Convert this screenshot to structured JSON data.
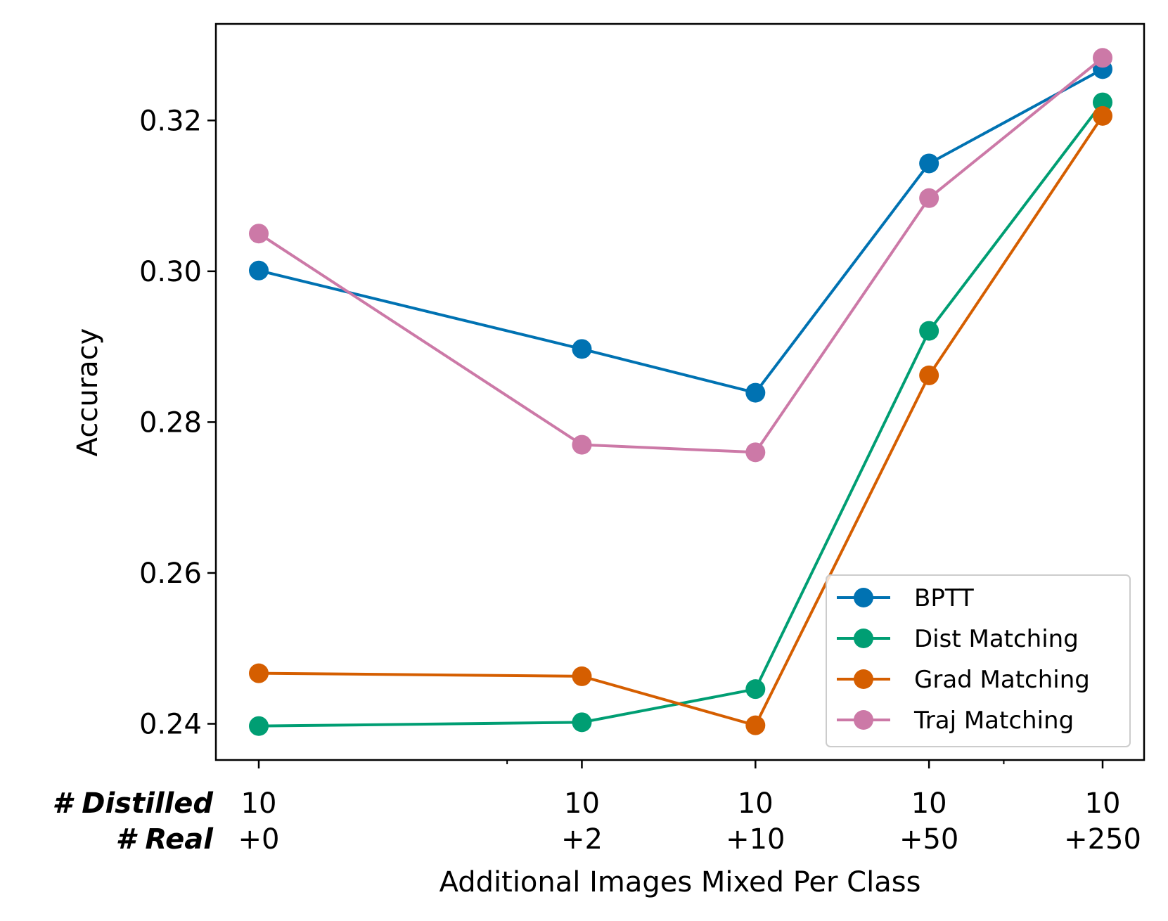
{
  "chart_data": {
    "type": "line",
    "title": "",
    "xlabel": "Additional Images Mixed Per Class",
    "ylabel": "Accuracy",
    "x_scale": "symlog",
    "x": [
      0,
      2,
      10,
      50,
      250
    ],
    "x_row_labels": {
      "distilled": "# Distilled",
      "real": "# Real"
    },
    "x_tick_distilled": [
      "10",
      "10",
      "10",
      "10",
      "10"
    ],
    "x_tick_real": [
      "+0",
      "+2",
      "+10",
      "+50",
      "+250"
    ],
    "x_minor_ticks": [
      1,
      100
    ],
    "ylim": [
      0.2352,
      0.3328
    ],
    "yticks": [
      0.24,
      0.26,
      0.28,
      0.3,
      0.32
    ],
    "ytick_labels": [
      "0.24",
      "0.26",
      "0.28",
      "0.30",
      "0.32"
    ],
    "grid": false,
    "legend_position": "lower right",
    "series": [
      {
        "name": "BPTT",
        "color": "#0072B2",
        "values": [
          0.3001,
          0.2897,
          0.2839,
          0.3143,
          0.3268
        ]
      },
      {
        "name": "Dist Matching",
        "color": "#009E73",
        "values": [
          0.2397,
          0.2402,
          0.2446,
          0.2921,
          0.3224
        ]
      },
      {
        "name": "Grad Matching",
        "color": "#D55E00",
        "values": [
          0.2467,
          0.2463,
          0.2398,
          0.2862,
          0.3206
        ]
      },
      {
        "name": "Traj Matching",
        "color": "#CC79A7",
        "values": [
          0.305,
          0.277,
          0.276,
          0.3097,
          0.3283
        ]
      }
    ]
  }
}
